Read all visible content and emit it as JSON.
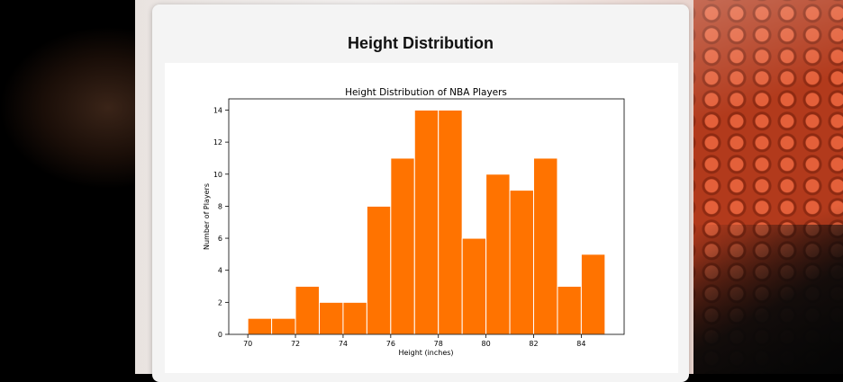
{
  "page": {
    "title": "Height Distribution"
  },
  "colors": {
    "bar_fill": "#ff7300",
    "bar_edge": "#ffffff",
    "axis": "#000000"
  },
  "chart_data": {
    "type": "bar",
    "title": "Height Distribution of NBA Players",
    "xlabel": "Height (inches)",
    "ylabel": "Number of Players",
    "bin_width": 1,
    "bins": [
      70,
      71,
      72,
      73,
      74,
      75,
      76,
      77,
      78,
      79,
      80,
      81,
      82,
      83,
      84
    ],
    "values": [
      1,
      1,
      3,
      2,
      2,
      8,
      11,
      14,
      14,
      6,
      10,
      9,
      11,
      3,
      5
    ],
    "xlim": [
      69.2,
      85.8
    ],
    "ylim": [
      0,
      14.7
    ],
    "xticks": [
      70,
      72,
      74,
      76,
      78,
      80,
      82,
      84
    ],
    "yticks": [
      0,
      2,
      4,
      6,
      8,
      10,
      12,
      14
    ],
    "grid": false
  }
}
